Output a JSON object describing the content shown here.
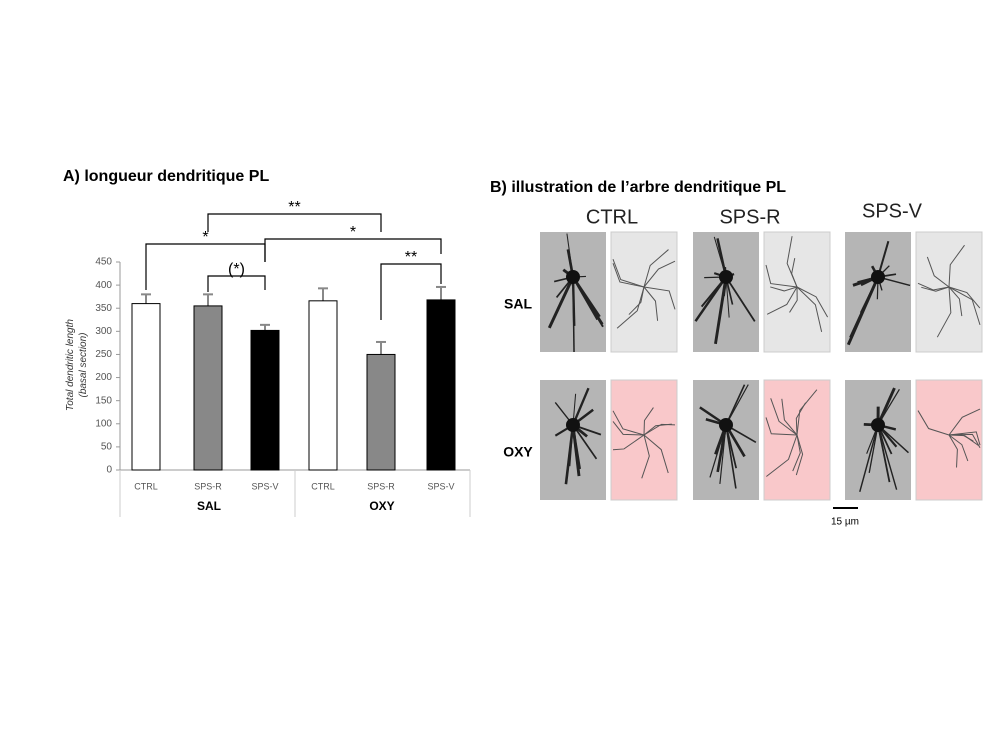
{
  "chart_data": {
    "type": "bar",
    "title": "A) longueur dendritique PL",
    "y_label": [
      "Total dendritic length",
      "(basal section)"
    ],
    "categories": [
      "CTRL",
      "SPS-R",
      "SPS-V",
      "CTRL",
      "SPS-R",
      "SPS-V"
    ],
    "groups": [
      "SAL",
      "OXY"
    ],
    "values": [
      360,
      355,
      302,
      366,
      250,
      368
    ],
    "errors": [
      20,
      25,
      12,
      27,
      27,
      28
    ],
    "colors": [
      "#ffffff",
      "#888888",
      "#000000",
      "#ffffff",
      "#888888",
      "#000000"
    ],
    "ylim": [
      0,
      450
    ],
    "yticks": [
      0,
      50,
      100,
      150,
      200,
      250,
      300,
      350,
      400,
      450
    ],
    "annotations": [
      "**",
      "*",
      "(*)",
      "*",
      "**"
    ]
  },
  "panel_b": {
    "title": "B) illustration de l’arbre dendritique PL",
    "columns": [
      "CTRL",
      "SPS-R",
      "SPS-V"
    ],
    "rows": [
      "SAL",
      "OXY"
    ],
    "scale_bar": "15 µm"
  }
}
